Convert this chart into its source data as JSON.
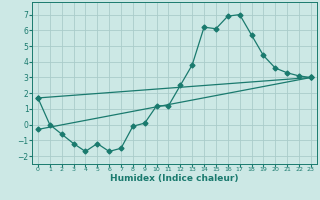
{
  "xlabel": "Humidex (Indice chaleur)",
  "bg_color": "#cce8e5",
  "grid_color": "#aaccca",
  "line_color": "#1a7a6e",
  "xlim": [
    -0.5,
    23.5
  ],
  "ylim": [
    -2.5,
    7.8
  ],
  "xticks": [
    0,
    1,
    2,
    3,
    4,
    5,
    6,
    7,
    8,
    9,
    10,
    11,
    12,
    13,
    14,
    15,
    16,
    17,
    18,
    19,
    20,
    21,
    22,
    23
  ],
  "yticks": [
    -2,
    -1,
    0,
    1,
    2,
    3,
    4,
    5,
    6,
    7
  ],
  "line1_x": [
    0,
    1,
    2,
    3,
    4,
    5,
    6,
    7,
    8,
    9,
    10,
    11,
    12,
    13,
    14,
    15,
    16,
    17,
    18,
    19,
    20,
    21,
    22,
    23
  ],
  "line1_y": [
    1.7,
    0.0,
    -0.6,
    -1.2,
    -1.7,
    -1.2,
    -1.7,
    -1.5,
    -0.1,
    0.1,
    1.2,
    1.2,
    2.5,
    3.8,
    6.2,
    6.1,
    6.9,
    7.0,
    5.7,
    4.4,
    3.6,
    3.3,
    3.1,
    3.0
  ],
  "line2_x": [
    0,
    23
  ],
  "line2_y": [
    1.7,
    3.0
  ],
  "line3_x": [
    0,
    23
  ],
  "line3_y": [
    -0.3,
    3.0
  ],
  "marker": "D",
  "markersize": 2.5
}
